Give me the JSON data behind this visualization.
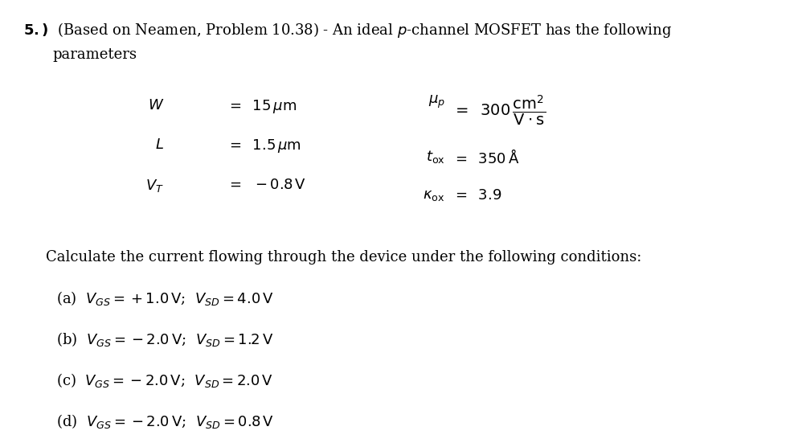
{
  "background_color": "#ffffff",
  "title_line1": "\\textbf{5.)}  (Based on Neamen, Problem 10.38) - An ideal $p$-channel MOSFET has the following",
  "title_line2": "parameters",
  "params_left": [
    "$W \\;\\; = \\;\\; 15\\,\\mu$m",
    "$L \\;\\; = \\;\\; 1.5\\,\\mu$m",
    "$V_T \\;\\; = \\;\\; -0.8V$"
  ],
  "params_right": [
    "$\\mu_p \\;\\; = \\;\\; 300\\,\\dfrac{\\mathrm{cm}^2}{\\mathrm{V \\cdot s}}$",
    "$t_{\\mathrm{ox}} \\;\\; = \\;\\; 350\\,\\mathring{A}$",
    "$\\kappa_{\\mathrm{ox}} \\;\\; = \\;\\; 3.9$"
  ],
  "calc_text": "Calculate the current flowing through the device under the following conditions:",
  "conditions": [
    "(a)  $V_{GS} = +1.0\\,\\mathrm{V}$;  $V_{SD} = 4.0\\,\\mathrm{V}$",
    "(b)  $V_{GS} = -2.0\\,\\mathrm{V}$;  $V_{SD} = 1.2\\,\\mathrm{V}$",
    "(c)  $V_{GS} = -2.0\\,\\mathrm{V}$;  $V_{SD} = 2.0\\,\\mathrm{V}$",
    "(d)  $V_{GS} = -2.0\\,\\mathrm{V}$;  $V_{SD} = 0.8\\,\\mathrm{V}$"
  ],
  "font_size_title": 13,
  "font_size_body": 13,
  "font_size_params": 13
}
